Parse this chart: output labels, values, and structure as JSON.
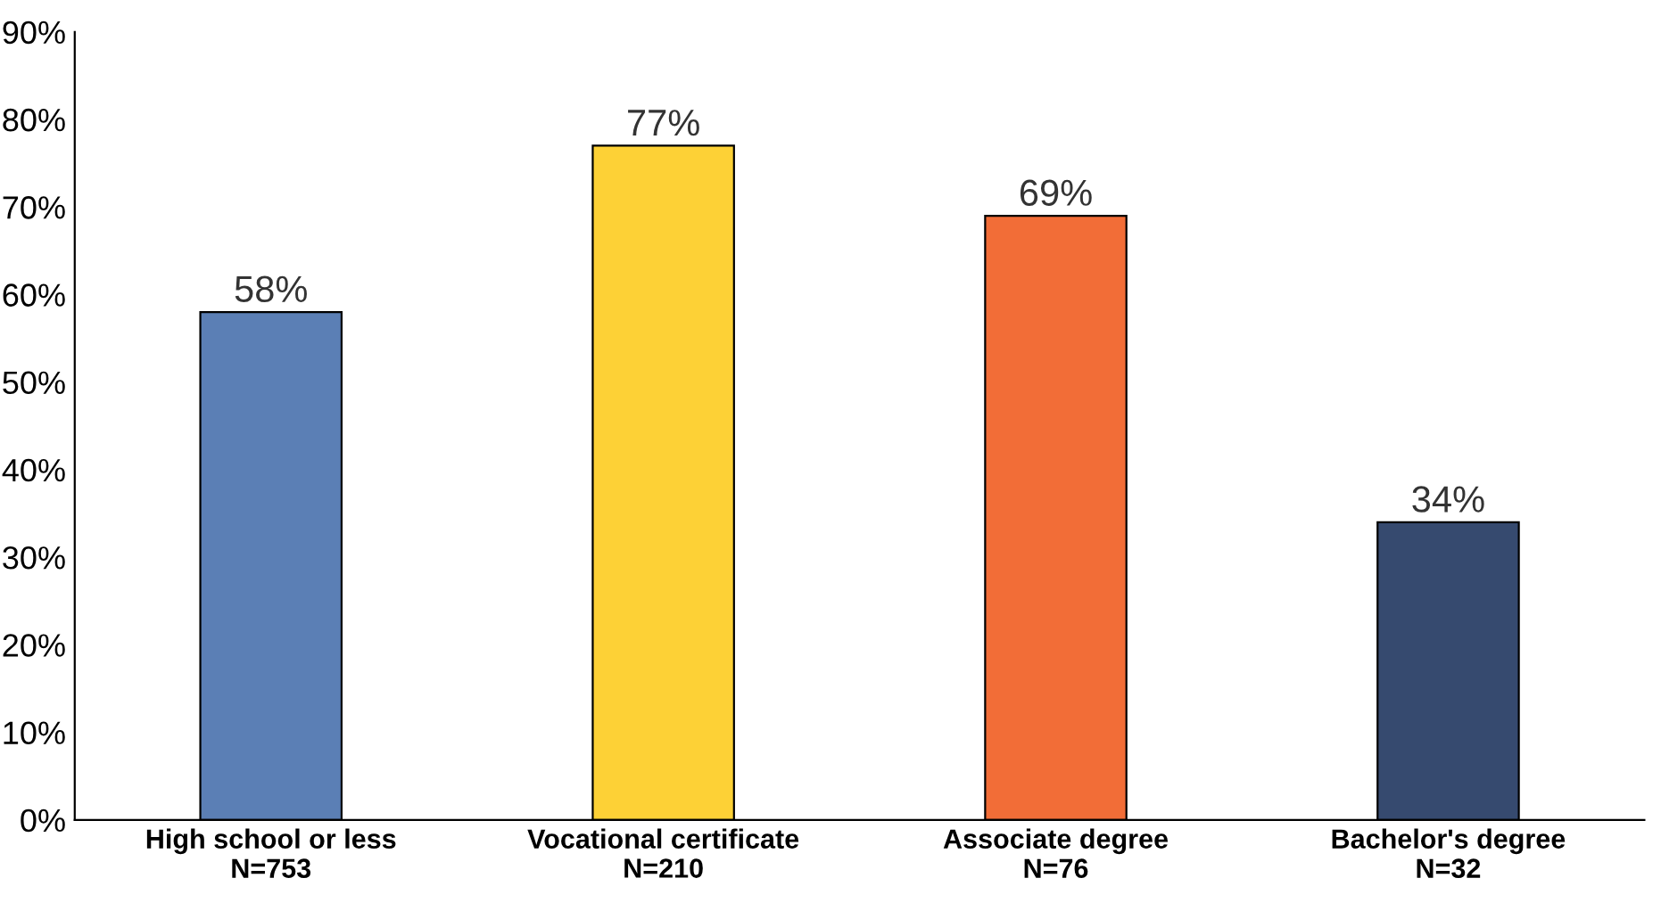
{
  "chart_data": {
    "type": "bar",
    "categories": [
      "High school or less\nN=753",
      "Vocational certificate\nN=210",
      "Associate degree\nN=76",
      "Bachelor's degree\nN=32"
    ],
    "values": [
      58,
      77,
      69,
      34
    ],
    "colors": [
      "#5b7fb5",
      "#fdd136",
      "#f26d37",
      "#364a6f"
    ],
    "value_labels": [
      "58%",
      "77%",
      "69%",
      "34%"
    ],
    "ylim": [
      0,
      90
    ],
    "yticks": [
      {
        "value": 0,
        "label": "0%"
      },
      {
        "value": 10,
        "label": "10%"
      },
      {
        "value": 20,
        "label": "20%"
      },
      {
        "value": 30,
        "label": "30%"
      },
      {
        "value": 40,
        "label": "40%"
      },
      {
        "value": 50,
        "label": "50%"
      },
      {
        "value": 60,
        "label": "60%"
      },
      {
        "value": 70,
        "label": "70%"
      },
      {
        "value": 80,
        "label": "80%"
      },
      {
        "value": 90,
        "label": "90%"
      }
    ],
    "grid": false,
    "legend": false
  }
}
